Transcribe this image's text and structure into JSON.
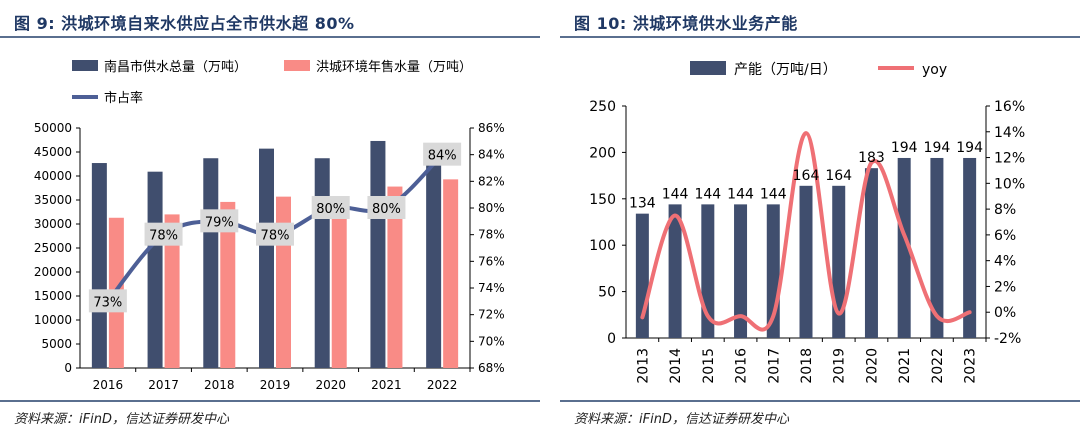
{
  "figures": [
    {
      "title": "图 9:  洪城环境自来水供应占全市供水超 80%",
      "source": "资料来源：iFinD，信达证券研发中心"
    },
    {
      "title": "图 10:  洪城环境供水业务产能",
      "source": "资料来源：iFinD，信达证券研发中心"
    }
  ],
  "colors": {
    "navy": "#404e6e",
    "salmon": "#f98b86",
    "line_blue": "#4d5f96",
    "pink": "#ef7075",
    "label_bg": "#d9d9d9",
    "title_blue": "#1f3864"
  },
  "chart_data": [
    {
      "type": "bar",
      "title": "洪城环境自来水供应占全市供水超 80%",
      "categories": [
        "2016",
        "2017",
        "2018",
        "2019",
        "2020",
        "2021",
        "2022"
      ],
      "series": [
        {
          "name": "南昌市供水总量（万吨）",
          "axis": "left",
          "kind": "bar",
          "values": [
            42700,
            40900,
            43700,
            45700,
            43700,
            47300,
            46800
          ]
        },
        {
          "name": "洪城环境年售水量（万吨）",
          "axis": "left",
          "kind": "bar",
          "values": [
            31300,
            32000,
            34600,
            35700,
            34900,
            37800,
            39300
          ]
        },
        {
          "name": "市占率",
          "axis": "right",
          "kind": "line",
          "values": [
            73,
            78,
            79,
            78,
            80,
            80,
            84
          ],
          "labels": [
            "73%",
            "78%",
            "79%",
            "78%",
            "80%",
            "80%",
            "84%"
          ]
        }
      ],
      "y_left": {
        "min": 0,
        "max": 50000,
        "step": 5000,
        "ticks": [
          "0",
          "5000",
          "10000",
          "15000",
          "20000",
          "25000",
          "30000",
          "35000",
          "40000",
          "45000",
          "50000"
        ]
      },
      "y_right": {
        "min": 68,
        "max": 86,
        "step": 2,
        "ticks": [
          "68%",
          "70%",
          "72%",
          "74%",
          "76%",
          "78%",
          "80%",
          "82%",
          "84%",
          "86%"
        ]
      },
      "legend": [
        "南昌市供水总量（万吨）",
        "洪城环境年售水量（万吨）",
        "市占率"
      ]
    },
    {
      "type": "bar",
      "title": "洪城环境供水业务产能",
      "categories": [
        "2013",
        "2014",
        "2015",
        "2016",
        "2017",
        "2018",
        "2019",
        "2020",
        "2021",
        "2022",
        "2023"
      ],
      "series": [
        {
          "name": "产能（万吨/日）",
          "axis": "left",
          "kind": "bar",
          "values": [
            134,
            144,
            144,
            144,
            144,
            164,
            164,
            183,
            194,
            194,
            194
          ],
          "labels": [
            "134",
            "144",
            "144",
            "144",
            "144",
            "164",
            "164",
            "183",
            "194",
            "194",
            "194"
          ]
        },
        {
          "name": "yoy",
          "axis": "right",
          "kind": "line",
          "values": [
            -0.4,
            7.5,
            -0.3,
            -0.3,
            -0.3,
            13.9,
            -0.1,
            11.6,
            6.0,
            -0.3,
            0.0
          ]
        }
      ],
      "y_left": {
        "min": 0,
        "max": 250,
        "step": 50,
        "ticks": [
          "0",
          "50",
          "100",
          "150",
          "200",
          "250"
        ]
      },
      "y_right": {
        "min": -2,
        "max": 16,
        "step": 2,
        "ticks": [
          "-2%",
          "0%",
          "2%",
          "4%",
          "6%",
          "8%",
          "10%",
          "12%",
          "14%",
          "16%"
        ]
      },
      "legend": [
        "产能（万吨/日）",
        "yoy"
      ]
    }
  ]
}
